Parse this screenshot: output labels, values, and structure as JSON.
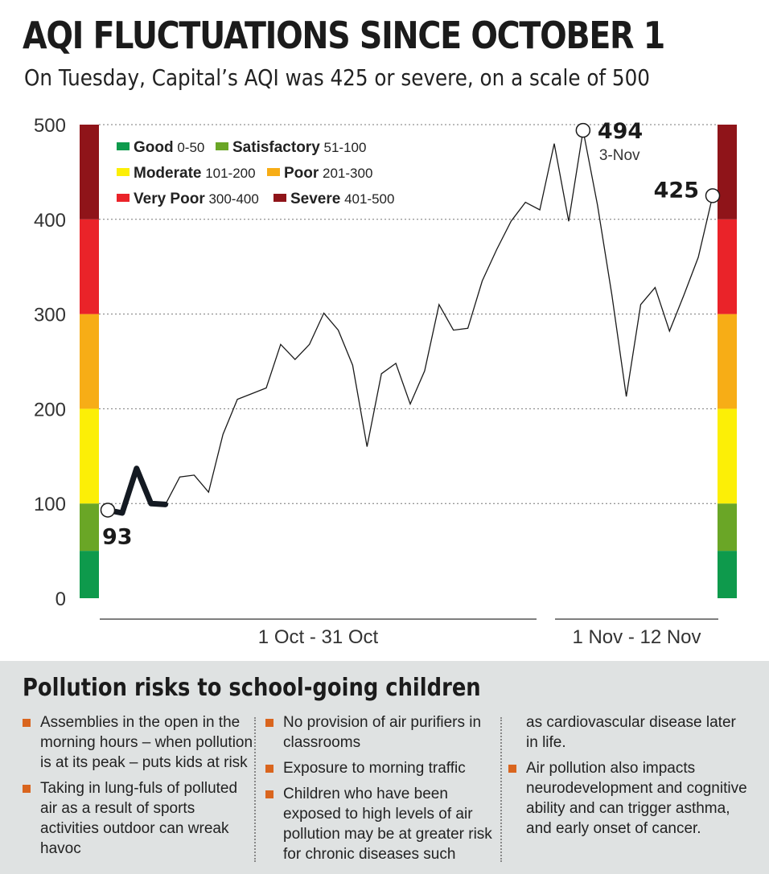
{
  "header": {
    "title": "AQI FLUCTUATIONS SINCE OCTOBER 1",
    "subtitle": "On Tuesday, Capital’s AQI was 425 or severe, on a scale of 500"
  },
  "chart_data": {
    "type": "line",
    "ylim": [
      0,
      500
    ],
    "yticks": [
      "0",
      "100",
      "200",
      "300",
      "400",
      "500"
    ],
    "grid": "dotted horizontal",
    "period_labels": [
      "1 Oct - 31 Oct",
      "1 Nov - 12 Nov"
    ],
    "legend_position": "top-left",
    "legend": [
      {
        "name": "Good",
        "range": "0-50",
        "color": "#0e9a4c"
      },
      {
        "name": "Satisfactory",
        "range": "51-100",
        "color": "#6aa626"
      },
      {
        "name": "Moderate",
        "range": "101-200",
        "color": "#fcef06"
      },
      {
        "name": "Poor",
        "range": "201-300",
        "color": "#f7ad16"
      },
      {
        "name": "Very Poor",
        "range": "300-400",
        "color": "#ea2329"
      },
      {
        "name": "Severe",
        "range": "401-500",
        "color": "#8f1419"
      }
    ],
    "bands": [
      {
        "from": 0,
        "to": 50,
        "color": "#0e9a4c"
      },
      {
        "from": 50,
        "to": 100,
        "color": "#6aa626"
      },
      {
        "from": 100,
        "to": 200,
        "color": "#fcef06"
      },
      {
        "from": 200,
        "to": 300,
        "color": "#f7ad16"
      },
      {
        "from": 300,
        "to": 400,
        "color": "#ea2329"
      },
      {
        "from": 400,
        "to": 500,
        "color": "#8f1419"
      }
    ],
    "series": [
      {
        "values": [
          93,
          90,
          137,
          100,
          99,
          128,
          130,
          112,
          173,
          210,
          216,
          222,
          268,
          252,
          268,
          301,
          283,
          246,
          160,
          237,
          248,
          205,
          240,
          310,
          283,
          285,
          335,
          368,
          398,
          418,
          410,
          480,
          398,
          494,
          415,
          320,
          213,
          310,
          328,
          282,
          320,
          360,
          425
        ],
        "highlight_count": 5
      }
    ],
    "annotations": [
      {
        "index": 0,
        "label": "93",
        "position": "below"
      },
      {
        "index": 33,
        "label": "494",
        "sublabel": "3-Nov",
        "position": "right"
      },
      {
        "index": 42,
        "label": "425",
        "position": "left"
      }
    ]
  },
  "risks": {
    "heading": "Pollution risks to school-going children",
    "columns": [
      [
        {
          "bullet": true,
          "text": "Assemblies in the open in the morning hours – when pollution is at its peak – puts kids at risk"
        },
        {
          "bullet": true,
          "text": "Taking in lung-fuls of polluted air as a result of sports activities outdoor can wreak havoc"
        }
      ],
      [
        {
          "bullet": true,
          "text": "No provision of air purifiers in classrooms"
        },
        {
          "bullet": true,
          "text": "Exposure to morning traffic"
        },
        {
          "bullet": true,
          "text": "Children who have been exposed to high levels of air pollution may be at greater risk for chronic diseases such"
        }
      ],
      [
        {
          "bullet": false,
          "text": "as cardiovascular disease later in life."
        },
        {
          "bullet": true,
          "text": " Air pollution also impacts neurodevelopment and cognitive ability and can trigger asthma, and early onset of cancer."
        }
      ]
    ]
  }
}
